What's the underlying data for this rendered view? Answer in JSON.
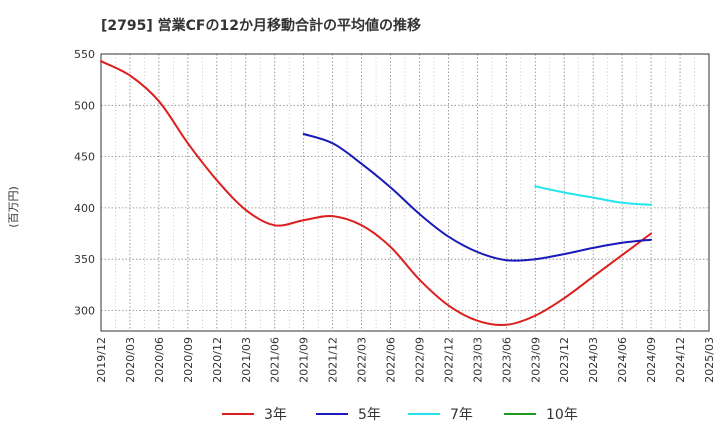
{
  "chart_data": {
    "type": "line",
    "title": "[2795]  営業CFの12か月移動合計の平均値の推移",
    "ylabel": "(百万円)",
    "xlabel": "",
    "ylim": [
      280,
      550
    ],
    "yticks": [
      300,
      350,
      400,
      450,
      500,
      550
    ],
    "x_categories": [
      "2019/12",
      "2020/03",
      "2020/06",
      "2020/09",
      "2020/12",
      "2021/03",
      "2021/06",
      "2021/09",
      "2021/12",
      "2022/03",
      "2022/06",
      "2022/09",
      "2022/12",
      "2023/03",
      "2023/06",
      "2023/09",
      "2023/12",
      "2024/03",
      "2024/06",
      "2024/09",
      "2024/12",
      "2025/03"
    ],
    "grid": true,
    "legend_position": "bottom",
    "series": [
      {
        "name": "3年",
        "color": "#dd1f1f",
        "points": [
          [
            "2019/12",
            543
          ],
          [
            "2020/03",
            529
          ],
          [
            "2020/06",
            504
          ],
          [
            "2020/09",
            463
          ],
          [
            "2020/12",
            427
          ],
          [
            "2021/03",
            398
          ],
          [
            "2021/06",
            383
          ],
          [
            "2021/09",
            388
          ],
          [
            "2021/12",
            392
          ],
          [
            "2022/03",
            383
          ],
          [
            "2022/06",
            362
          ],
          [
            "2022/09",
            330
          ],
          [
            "2022/12",
            305
          ],
          [
            "2023/03",
            290
          ],
          [
            "2023/06",
            286
          ],
          [
            "2023/09",
            295
          ],
          [
            "2023/12",
            312
          ],
          [
            "2024/03",
            333
          ],
          [
            "2024/06",
            354
          ],
          [
            "2024/09",
            375
          ]
        ]
      },
      {
        "name": "5年",
        "color": "#1a1aba",
        "points": [
          [
            "2021/09",
            472
          ],
          [
            "2021/12",
            463
          ],
          [
            "2022/03",
            443
          ],
          [
            "2022/06",
            420
          ],
          [
            "2022/09",
            394
          ],
          [
            "2022/12",
            372
          ],
          [
            "2023/03",
            357
          ],
          [
            "2023/06",
            349
          ],
          [
            "2023/09",
            350
          ],
          [
            "2023/12",
            355
          ],
          [
            "2024/03",
            361
          ],
          [
            "2024/06",
            366
          ],
          [
            "2024/09",
            369
          ]
        ]
      },
      {
        "name": "7年",
        "color": "#22e5f0",
        "points": [
          [
            "2023/09",
            421
          ],
          [
            "2023/12",
            415
          ],
          [
            "2024/03",
            410
          ],
          [
            "2024/06",
            405
          ],
          [
            "2024/09",
            403
          ]
        ]
      },
      {
        "name": "10年",
        "color": "#229922",
        "points": []
      }
    ]
  }
}
